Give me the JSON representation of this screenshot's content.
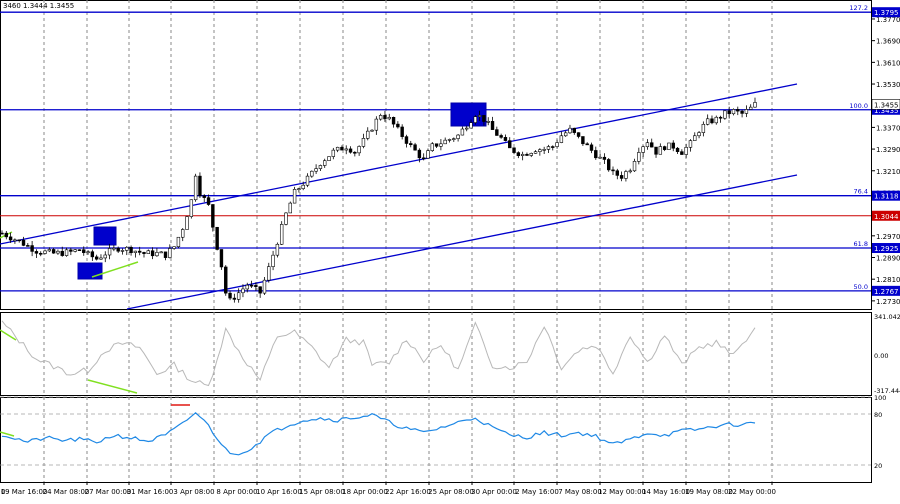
{
  "chart_data": {
    "type": "candlestick",
    "symbol_header": "3460 1.3444 1.3455",
    "price_axis": {
      "ylim": [
        1.27,
        1.384
      ],
      "ticks": [
        "1.3770",
        "1.3690",
        "1.3610",
        "1.3530",
        "1.3450",
        "1.3370",
        "1.3290",
        "1.3210",
        "1.3130",
        "1.3050",
        "1.2970",
        "1.2890",
        "1.2810",
        "1.2730"
      ]
    },
    "x_axis": {
      "labels": [
        "19 Mar 16:00",
        "24 Mar 08:00",
        "27 Mar 00:00",
        "31 Mar 16:00",
        "3 Apr 08:00",
        "8 Apr 00:00",
        "10 Apr 16:00",
        "15 Apr 08:00",
        "18 Apr 00:00",
        "22 Apr 16:00",
        "25 Apr 08:00",
        "30 Apr 00:00",
        "2 May 16:00",
        "7 May 08:00",
        "12 May 00:00",
        "14 May 16:00",
        "19 May 08:00",
        "22 May 00:00"
      ],
      "first_label_fragment": "0"
    },
    "fib_levels": [
      {
        "label": "127.2",
        "price": 1.3795,
        "tag": "1.3795",
        "color": "#0000cc"
      },
      {
        "label": "100.0",
        "price": 1.3435,
        "tag": "1.3435",
        "color": "#0000cc"
      },
      {
        "label": "76.4",
        "price": 1.3118,
        "tag": "1.3118",
        "color": "#0000cc"
      },
      {
        "label": "61.8",
        "price": 1.2925,
        "tag": "1.2925",
        "color": "#0000cc"
      },
      {
        "label": "50.0",
        "price": 1.2767,
        "tag": "1.2767",
        "color": "#0000cc"
      }
    ],
    "resistance_line": {
      "price": 1.3044,
      "tag": "1.3044",
      "color": "#cc0000"
    },
    "current_price": {
      "tag": "1.3455",
      "price": 1.3455
    },
    "channel": {
      "upper": [
        {
          "x": "18 Mar 12:00",
          "price": 1.2985
        },
        {
          "x": "23 May 16:00",
          "price": 1.3525
        }
      ],
      "lower": [
        {
          "x": "28 Mar 12:00",
          "price": 1.27
        },
        {
          "x": "23 May 16:00",
          "price": 1.3215
        }
      ]
    },
    "path": [
      [
        0,
        1.298
      ],
      [
        4,
        1.295
      ],
      [
        8,
        1.2915
      ],
      [
        12,
        1.2905
      ],
      [
        16,
        1.291
      ],
      [
        18,
        1.292
      ],
      [
        20,
        1.29
      ],
      [
        22,
        1.2885
      ],
      [
        24,
        1.2905
      ],
      [
        27,
        1.2925
      ],
      [
        30,
        1.292
      ],
      [
        33,
        1.2905
      ],
      [
        36,
        1.2905
      ],
      [
        38,
        1.29
      ],
      [
        40,
        1.293
      ],
      [
        42,
        1.3
      ],
      [
        44,
        1.31
      ],
      [
        45,
        1.32
      ],
      [
        46,
        1.313
      ],
      [
        48,
        1.308
      ],
      [
        50,
        1.293
      ],
      [
        51,
        1.286
      ],
      [
        52,
        1.276
      ],
      [
        53,
        1.273
      ],
      [
        55,
        1.276
      ],
      [
        57,
        1.279
      ],
      [
        60,
        1.276
      ],
      [
        62,
        1.285
      ],
      [
        64,
        1.295
      ],
      [
        66,
        1.305
      ],
      [
        68,
        1.313
      ],
      [
        71,
        1.318
      ],
      [
        74,
        1.324
      ],
      [
        77,
        1.328
      ],
      [
        80,
        1.33
      ],
      [
        82,
        1.328
      ],
      [
        84,
        1.332
      ],
      [
        86,
        1.337
      ],
      [
        88,
        1.342
      ],
      [
        90,
        1.34
      ],
      [
        92,
        1.336
      ],
      [
        95,
        1.33
      ],
      [
        98,
        1.325
      ],
      [
        100,
        1.33
      ],
      [
        103,
        1.332
      ],
      [
        106,
        1.334
      ],
      [
        108,
        1.338
      ],
      [
        110,
        1.342
      ],
      [
        112,
        1.34
      ],
      [
        114,
        1.336
      ],
      [
        116,
        1.333
      ],
      [
        118,
        1.329
      ],
      [
        121,
        1.327
      ],
      [
        124,
        1.329
      ],
      [
        126,
        1.329
      ],
      [
        128,
        1.33
      ],
      [
        130,
        1.334
      ],
      [
        132,
        1.336
      ],
      [
        134,
        1.333
      ],
      [
        136,
        1.33
      ],
      [
        138,
        1.327
      ],
      [
        140,
        1.324
      ],
      [
        142,
        1.32
      ],
      [
        144,
        1.319
      ],
      [
        146,
        1.322
      ],
      [
        148,
        1.329
      ],
      [
        150,
        1.332
      ],
      [
        152,
        1.328
      ],
      [
        154,
        1.33
      ],
      [
        156,
        1.33
      ],
      [
        158,
        1.328
      ],
      [
        160,
        1.331
      ],
      [
        162,
        1.336
      ],
      [
        164,
        1.339
      ],
      [
        166,
        1.34
      ],
      [
        168,
        1.342
      ],
      [
        170,
        1.343
      ],
      [
        172,
        1.342
      ],
      [
        174,
        1.344
      ],
      [
        175,
        1.3455
      ]
    ],
    "zones": [
      {
        "name": "zone-1",
        "x0": 94,
        "x1": 116,
        "top": 1.302,
        "bottom": 1.297
      },
      {
        "name": "zone-2",
        "x0": 78,
        "x1": 102,
        "top": 1.289,
        "bottom": 1.286
      },
      {
        "name": "zone-3",
        "x0": 451,
        "x1": 486,
        "top": 1.3455,
        "bottom": 1.3398
      }
    ],
    "cci_panel": {
      "max_label": "341.0423",
      "zero_label": "0.00",
      "min_label": "-317.444",
      "ylim": [
        -317.444,
        341.0423
      ],
      "line_color": "#b8b8b8",
      "path": [
        [
          0,
          260
        ],
        [
          8,
          -30
        ],
        [
          16,
          -150
        ],
        [
          20,
          -120
        ],
        [
          24,
          40
        ],
        [
          28,
          90
        ],
        [
          32,
          60
        ],
        [
          36,
          -150
        ],
        [
          40,
          -80
        ],
        [
          44,
          -200
        ],
        [
          48,
          -250
        ],
        [
          52,
          200
        ],
        [
          56,
          -20
        ],
        [
          60,
          -200
        ],
        [
          64,
          150
        ],
        [
          68,
          180
        ],
        [
          72,
          60
        ],
        [
          76,
          -100
        ],
        [
          80,
          120
        ],
        [
          84,
          100
        ],
        [
          86,
          -80
        ],
        [
          90,
          -60
        ],
        [
          94,
          130
        ],
        [
          98,
          -40
        ],
        [
          102,
          80
        ],
        [
          106,
          -120
        ],
        [
          110,
          240
        ],
        [
          114,
          -80
        ],
        [
          118,
          -100
        ],
        [
          122,
          -50
        ],
        [
          126,
          240
        ],
        [
          130,
          -100
        ],
        [
          134,
          40
        ],
        [
          138,
          80
        ],
        [
          142,
          -140
        ],
        [
          146,
          160
        ],
        [
          150,
          -60
        ],
        [
          154,
          160
        ],
        [
          158,
          -80
        ],
        [
          162,
          60
        ],
        [
          166,
          100
        ],
        [
          170,
          -10
        ],
        [
          172,
          100
        ],
        [
          175,
          200
        ]
      ],
      "divergence_lines": [
        {
          "x0": 0,
          "v0": 250,
          "x1": 8,
          "v1": 30
        },
        {
          "x0": 20,
          "v0": -300,
          "x1": 33,
          "v1": -420
        }
      ]
    },
    "rsi_panel": {
      "levels": [
        100,
        80,
        20
      ],
      "ylim": [
        0,
        100
      ],
      "line_color": "#1e88e5",
      "path": [
        [
          0,
          56
        ],
        [
          6,
          47
        ],
        [
          10,
          52
        ],
        [
          14,
          49
        ],
        [
          18,
          50
        ],
        [
          22,
          47
        ],
        [
          26,
          55
        ],
        [
          30,
          52
        ],
        [
          34,
          48
        ],
        [
          38,
          55
        ],
        [
          42,
          68
        ],
        [
          45,
          82
        ],
        [
          48,
          66
        ],
        [
          52,
          38
        ],
        [
          54,
          32
        ],
        [
          58,
          40
        ],
        [
          62,
          56
        ],
        [
          66,
          66
        ],
        [
          70,
          73
        ],
        [
          74,
          75
        ],
        [
          78,
          73
        ],
        [
          82,
          76
        ],
        [
          86,
          79
        ],
        [
          90,
          70
        ],
        [
          94,
          63
        ],
        [
          98,
          58
        ],
        [
          102,
          64
        ],
        [
          106,
          70
        ],
        [
          110,
          76
        ],
        [
          114,
          64
        ],
        [
          118,
          55
        ],
        [
          122,
          53
        ],
        [
          126,
          58
        ],
        [
          130,
          55
        ],
        [
          134,
          58
        ],
        [
          138,
          54
        ],
        [
          142,
          44
        ],
        [
          146,
          50
        ],
        [
          150,
          58
        ],
        [
          154,
          55
        ],
        [
          158,
          60
        ],
        [
          162,
          62
        ],
        [
          166,
          66
        ],
        [
          170,
          68
        ],
        [
          172,
          67
        ],
        [
          175,
          70
        ]
      ],
      "overbought_marker": {
        "x": 45,
        "value": 97,
        "color": "#e53935"
      }
    }
  },
  "colors": {
    "fib": "#0000cc",
    "resistance": "#cc0000",
    "candle": "#000000",
    "zone": "#0000cc",
    "divergence": "#80e020",
    "grid": "#8a8a8a"
  }
}
